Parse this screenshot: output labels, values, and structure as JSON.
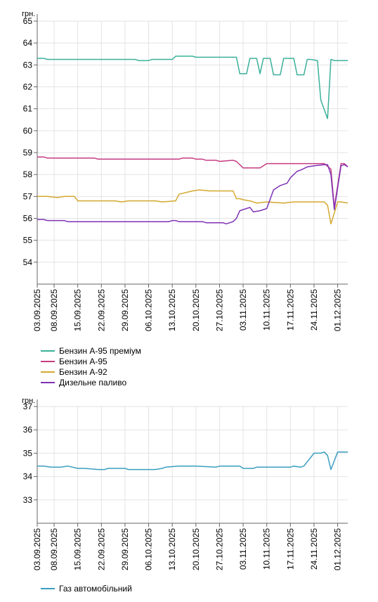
{
  "chart_data": [
    {
      "type": "line",
      "unit_label": "грн.",
      "x_tick_labels": [
        "03.09.2025",
        "08.09.2025",
        "15.09.2025",
        "22.09.2025",
        "29.09.2025",
        "06.10.2025",
        "13.10.2025",
        "20.10.2025",
        "27.10.2025",
        "03.11.2025",
        "10.11.2025",
        "17.11.2025",
        "24.11.2025",
        "01.12.2025"
      ],
      "x_tick_dates": [
        "2025-09-03",
        "2025-09-08",
        "2025-09-15",
        "2025-09-22",
        "2025-09-29",
        "2025-10-06",
        "2025-10-13",
        "2025-10-20",
        "2025-10-27",
        "2025-11-03",
        "2025-11-10",
        "2025-11-17",
        "2025-11-24",
        "2025-12-01"
      ],
      "xlim": [
        "2025-09-03",
        "2025-12-04"
      ],
      "ylim": [
        53,
        65
      ],
      "y_ticks": [
        54,
        55,
        56,
        57,
        58,
        59,
        60,
        61,
        62,
        63,
        64,
        65
      ],
      "grid": true,
      "legend_position": "bottom-left",
      "series": [
        {
          "name": "Бензин А-95 преміум",
          "color": "#3bb09a",
          "x": [
            "2025-09-03",
            "2025-09-05",
            "2025-09-06",
            "2025-09-18",
            "2025-09-19",
            "2025-09-20",
            "2025-10-02",
            "2025-10-03",
            "2025-10-06",
            "2025-10-07",
            "2025-10-13",
            "2025-10-14",
            "2025-10-19",
            "2025-10-20",
            "2025-10-22",
            "2025-10-23",
            "2025-10-25",
            "2025-10-26",
            "2025-10-31",
            "2025-11-01",
            "2025-11-02",
            "2025-11-04",
            "2025-11-05",
            "2025-11-07",
            "2025-11-08",
            "2025-11-09",
            "2025-11-11",
            "2025-11-12",
            "2025-11-14",
            "2025-11-15",
            "2025-11-16",
            "2025-11-18",
            "2025-11-19",
            "2025-11-21",
            "2025-11-22",
            "2025-11-23",
            "2025-11-25",
            "2025-11-26",
            "2025-11-28",
            "2025-11-29",
            "2025-11-30",
            "2025-12-01",
            "2025-12-02",
            "2025-12-04"
          ],
          "y": [
            63.3,
            63.3,
            63.25,
            63.25,
            63.25,
            63.25,
            63.25,
            63.2,
            63.2,
            63.25,
            63.25,
            63.4,
            63.4,
            63.35,
            63.35,
            63.35,
            63.35,
            63.35,
            63.35,
            63.35,
            62.6,
            62.6,
            63.3,
            63.3,
            62.6,
            63.3,
            63.3,
            62.55,
            62.55,
            63.3,
            63.3,
            63.3,
            62.55,
            62.55,
            63.25,
            63.25,
            63.2,
            61.4,
            60.55,
            63.25,
            63.2,
            63.2,
            63.2,
            63.2
          ]
        },
        {
          "name": "Бензин А-95",
          "color": "#c73c83",
          "x": [
            "2025-09-03",
            "2025-09-05",
            "2025-09-06",
            "2025-09-10",
            "2025-09-11",
            "2025-09-20",
            "2025-09-21",
            "2025-09-22",
            "2025-09-28",
            "2025-09-29",
            "2025-10-03",
            "2025-10-04",
            "2025-10-07",
            "2025-10-08",
            "2025-10-15",
            "2025-10-16",
            "2025-10-19",
            "2025-10-20",
            "2025-10-22",
            "2025-10-23",
            "2025-10-26",
            "2025-10-27",
            "2025-10-31",
            "2025-11-01",
            "2025-11-03",
            "2025-11-04",
            "2025-11-08",
            "2025-11-10",
            "2025-11-20",
            "2025-11-22",
            "2025-11-24",
            "2025-11-27",
            "2025-11-29",
            "2025-11-30",
            "2025-12-02",
            "2025-12-03",
            "2025-12-04"
          ],
          "y": [
            58.8,
            58.8,
            58.75,
            58.75,
            58.75,
            58.75,
            58.7,
            58.7,
            58.7,
            58.7,
            58.7,
            58.7,
            58.7,
            58.7,
            58.7,
            58.75,
            58.75,
            58.7,
            58.7,
            58.65,
            58.65,
            58.6,
            58.65,
            58.6,
            58.3,
            58.3,
            58.3,
            58.5,
            58.5,
            58.5,
            58.5,
            58.5,
            58.25,
            56.5,
            58.5,
            58.5,
            58.35
          ]
        },
        {
          "name": "Бензин А-92",
          "color": "#d4a82f",
          "x": [
            "2025-09-03",
            "2025-09-06",
            "2025-09-09",
            "2025-09-11",
            "2025-09-14",
            "2025-09-15",
            "2025-09-18",
            "2025-09-20",
            "2025-09-22",
            "2025-09-26",
            "2025-09-28",
            "2025-09-30",
            "2025-10-06",
            "2025-10-08",
            "2025-10-10",
            "2025-10-14",
            "2025-10-15",
            "2025-10-19",
            "2025-10-21",
            "2025-10-24",
            "2025-10-26",
            "2025-10-28",
            "2025-10-31",
            "2025-11-01",
            "2025-11-02",
            "2025-11-03",
            "2025-11-05",
            "2025-11-07",
            "2025-11-10",
            "2025-11-15",
            "2025-11-18",
            "2025-11-20",
            "2025-11-24",
            "2025-11-25",
            "2025-11-27",
            "2025-11-28",
            "2025-11-29",
            "2025-12-01",
            "2025-12-02",
            "2025-12-04"
          ],
          "y": [
            57.0,
            57.0,
            56.95,
            57.0,
            57.0,
            56.8,
            56.8,
            56.8,
            56.8,
            56.8,
            56.75,
            56.8,
            56.8,
            56.8,
            56.75,
            56.8,
            57.1,
            57.25,
            57.3,
            57.25,
            57.25,
            57.25,
            57.25,
            56.9,
            56.9,
            56.85,
            56.8,
            56.7,
            56.75,
            56.7,
            56.75,
            56.75,
            56.75,
            56.75,
            56.75,
            56.6,
            55.75,
            56.75,
            56.75,
            56.7
          ]
        },
        {
          "name": "Дизельне паливо",
          "color": "#7e32b5",
          "x": [
            "2025-09-03",
            "2025-09-05",
            "2025-09-06",
            "2025-09-11",
            "2025-09-12",
            "2025-09-18",
            "2025-09-19",
            "2025-10-12",
            "2025-10-13",
            "2025-10-14",
            "2025-10-15",
            "2025-10-16",
            "2025-10-18",
            "2025-10-22",
            "2025-10-23",
            "2025-10-24",
            "2025-10-28",
            "2025-10-29",
            "2025-10-31",
            "2025-11-01",
            "2025-11-02",
            "2025-11-04",
            "2025-11-05",
            "2025-11-06",
            "2025-11-08",
            "2025-11-10",
            "2025-11-12",
            "2025-11-14",
            "2025-11-16",
            "2025-11-17",
            "2025-11-19",
            "2025-11-20",
            "2025-11-22",
            "2025-11-24",
            "2025-11-27",
            "2025-11-28",
            "2025-11-29",
            "2025-11-30",
            "2025-12-02",
            "2025-12-03",
            "2025-12-04"
          ],
          "y": [
            55.95,
            55.95,
            55.9,
            55.9,
            55.85,
            55.85,
            55.85,
            55.85,
            55.9,
            55.9,
            55.85,
            55.85,
            55.85,
            55.85,
            55.8,
            55.8,
            55.8,
            55.75,
            55.85,
            56.0,
            56.35,
            56.45,
            56.5,
            56.3,
            56.35,
            56.45,
            57.3,
            57.5,
            57.6,
            57.85,
            58.15,
            58.2,
            58.35,
            58.4,
            58.45,
            58.45,
            58.0,
            56.4,
            58.4,
            58.45,
            58.35
          ]
        }
      ]
    },
    {
      "type": "line",
      "unit_label": "грн.",
      "x_tick_labels": [
        "03.09.2025",
        "08.09.2025",
        "15.09.2025",
        "22.09.2025",
        "29.09.2025",
        "06.10.2025",
        "13.10.2025",
        "20.10.2025",
        "27.10.2025",
        "03.11.2025",
        "10.11.2025",
        "17.11.2025",
        "24.11.2025",
        "01.12.2025"
      ],
      "x_tick_dates": [
        "2025-09-03",
        "2025-09-08",
        "2025-09-15",
        "2025-09-22",
        "2025-09-29",
        "2025-10-06",
        "2025-10-13",
        "2025-10-20",
        "2025-10-27",
        "2025-11-03",
        "2025-11-10",
        "2025-11-17",
        "2025-11-24",
        "2025-12-01"
      ],
      "xlim": [
        "2025-09-03",
        "2025-12-04"
      ],
      "ylim": [
        32,
        37
      ],
      "y_ticks": [
        33,
        34,
        35,
        36,
        37
      ],
      "grid": true,
      "legend_position": "bottom-left",
      "series": [
        {
          "name": "Газ автомобільний",
          "color": "#3a9ec1",
          "x": [
            "2025-09-03",
            "2025-09-05",
            "2025-09-07",
            "2025-09-10",
            "2025-09-12",
            "2025-09-15",
            "2025-09-17",
            "2025-09-21",
            "2025-09-23",
            "2025-09-24",
            "2025-09-29",
            "2025-09-30",
            "2025-10-08",
            "2025-10-10",
            "2025-10-11",
            "2025-10-15",
            "2025-10-20",
            "2025-10-26",
            "2025-10-27",
            "2025-11-02",
            "2025-11-03",
            "2025-11-06",
            "2025-11-07",
            "2025-11-17",
            "2025-11-18",
            "2025-11-20",
            "2025-11-21",
            "2025-11-24",
            "2025-11-26",
            "2025-11-27",
            "2025-11-28",
            "2025-11-29",
            "2025-12-01",
            "2025-12-02",
            "2025-12-04"
          ],
          "y": [
            34.45,
            34.45,
            34.4,
            34.4,
            34.45,
            34.35,
            34.35,
            34.3,
            34.3,
            34.35,
            34.35,
            34.3,
            34.3,
            34.35,
            34.4,
            34.45,
            34.45,
            34.4,
            34.45,
            34.45,
            34.35,
            34.35,
            34.4,
            34.4,
            34.45,
            34.4,
            34.45,
            35.0,
            35.0,
            35.05,
            34.9,
            34.3,
            35.05,
            35.05,
            35.05
          ]
        }
      ]
    }
  ]
}
